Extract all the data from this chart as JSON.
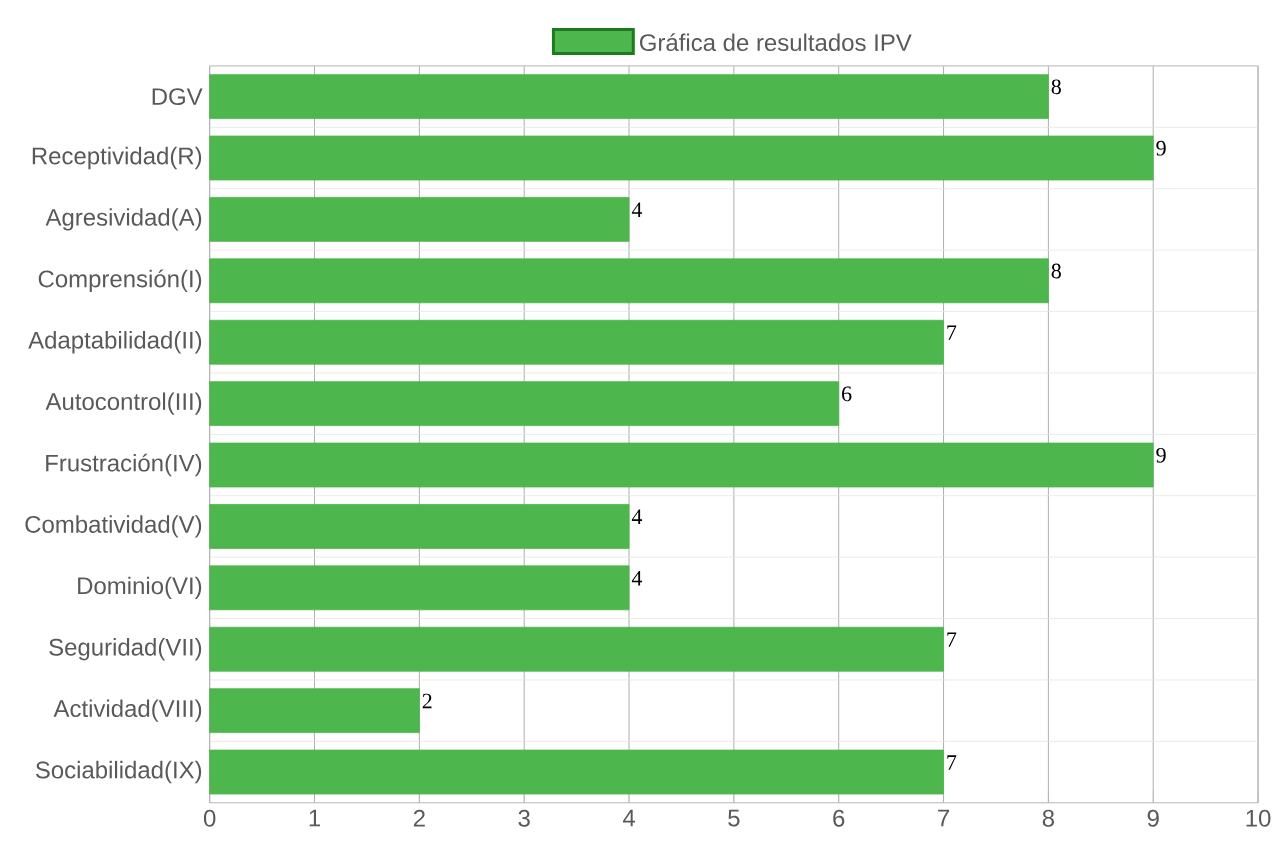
{
  "chart_data": {
    "type": "bar",
    "orientation": "horizontal",
    "categories": [
      "DGV",
      "Receptividad(R)",
      "Agresividad(A)",
      "Comprensión(I)",
      "Adaptabilidad(II)",
      "Autocontrol(III)",
      "Frustración(IV)",
      "Combatividad(V)",
      "Dominio(VI)",
      "Seguridad(VII)",
      "Actividad(VIII)",
      "Sociabilidad(IX)"
    ],
    "series": [
      {
        "name": "Gráfica de resultados IPV",
        "color": "#4db64d",
        "values": [
          8,
          9,
          4,
          8,
          7,
          6,
          9,
          4,
          4,
          7,
          2,
          7
        ]
      }
    ],
    "xlim": [
      0,
      10
    ],
    "xticks": [
      0,
      1,
      2,
      3,
      4,
      5,
      6,
      7,
      8,
      9,
      10
    ],
    "grid": true,
    "legend": "top",
    "data_labels": true
  }
}
